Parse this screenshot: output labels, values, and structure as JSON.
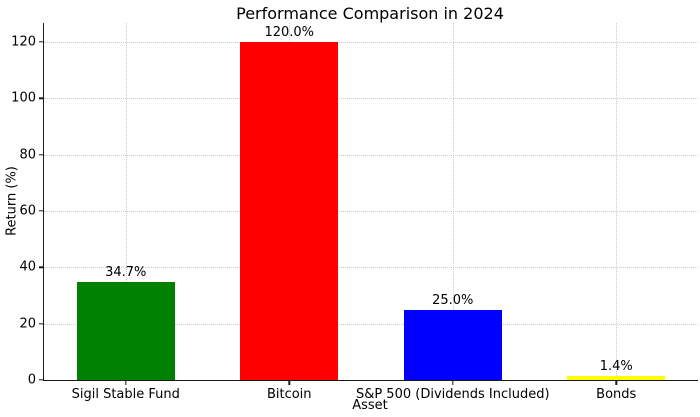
{
  "chart_data": {
    "type": "bar",
    "title": "Performance Comparison in 2024",
    "xlabel": "Asset",
    "ylabel": "Return (%)",
    "categories": [
      "Sigil Stable Fund",
      "Bitcoin",
      "S&P 500 (Dividends Included)",
      "Bonds"
    ],
    "values": [
      34.7,
      120.0,
      25.0,
      1.4
    ],
    "value_labels": [
      "34.7%",
      "120.0%",
      "25.0%",
      "1.4%"
    ],
    "bar_colors": [
      "#008000",
      "#ff0000",
      "#0000ff",
      "#ffff00"
    ],
    "yticks": [
      0,
      20,
      40,
      60,
      80,
      100,
      120
    ],
    "ylim": [
      0,
      126.7
    ],
    "grid": {
      "x": true,
      "y": true,
      "style": "dotted",
      "color": "#cccccc"
    },
    "legend": "none",
    "background": "#ffffff"
  }
}
